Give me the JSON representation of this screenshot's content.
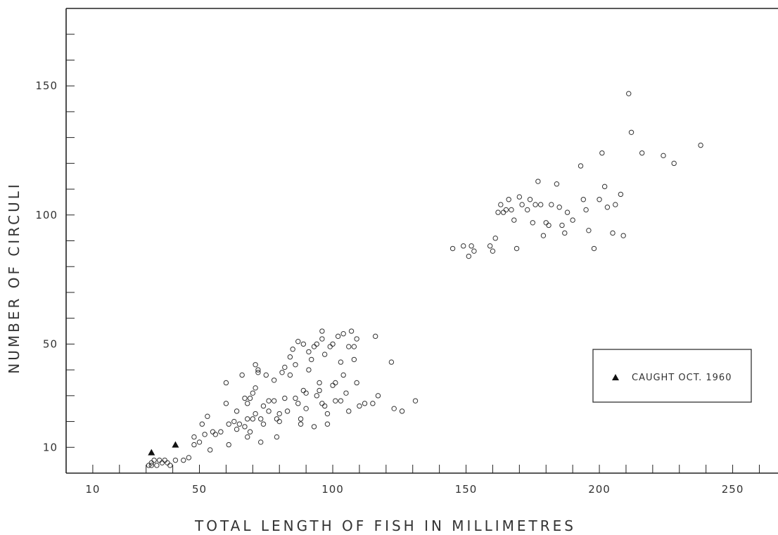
{
  "chart_data": {
    "type": "scatter",
    "title": "",
    "xlabel": "TOTAL LENGTH OF FISH IN MILLIMETRES",
    "ylabel": "NUMBER OF CIRCULI",
    "x_ticks": [
      10,
      50,
      100,
      150,
      200,
      250
    ],
    "y_ticks": [
      10,
      50,
      100,
      150
    ],
    "xlim": [
      0,
      267
    ],
    "ylim": [
      0,
      180
    ],
    "grid": false,
    "legend": {
      "placement": "right",
      "entries": [
        {
          "marker": "triangle",
          "label": "CAUGHT OCT. 1960"
        }
      ]
    },
    "series": [
      {
        "marker": "open-circle",
        "points": [
          [
            31,
            3
          ],
          [
            32,
            4
          ],
          [
            32,
            3
          ],
          [
            33,
            5
          ],
          [
            34,
            3
          ],
          [
            35,
            5
          ],
          [
            36,
            4
          ],
          [
            37,
            5
          ],
          [
            38,
            4
          ],
          [
            39,
            3
          ],
          [
            41,
            5
          ],
          [
            44,
            5
          ],
          [
            46,
            6
          ],
          [
            48,
            11
          ],
          [
            48,
            14
          ],
          [
            50,
            12
          ],
          [
            51,
            19
          ],
          [
            52,
            15
          ],
          [
            53,
            22
          ],
          [
            54,
            9
          ],
          [
            55,
            16
          ],
          [
            56,
            15
          ],
          [
            58,
            16
          ],
          [
            60,
            27
          ],
          [
            60,
            35
          ],
          [
            61,
            19
          ],
          [
            61,
            11
          ],
          [
            63,
            20
          ],
          [
            64,
            17
          ],
          [
            64,
            24
          ],
          [
            65,
            19
          ],
          [
            66,
            38
          ],
          [
            67,
            29
          ],
          [
            67,
            18
          ],
          [
            68,
            27
          ],
          [
            68,
            14
          ],
          [
            68,
            21
          ],
          [
            69,
            16
          ],
          [
            69,
            29
          ],
          [
            70,
            21
          ],
          [
            70,
            31
          ],
          [
            71,
            42
          ],
          [
            71,
            33
          ],
          [
            71,
            23
          ],
          [
            72,
            39
          ],
          [
            72,
            40
          ],
          [
            73,
            21
          ],
          [
            73,
            12
          ],
          [
            74,
            26
          ],
          [
            74,
            19
          ],
          [
            75,
            38
          ],
          [
            76,
            24
          ],
          [
            76,
            28
          ],
          [
            78,
            36
          ],
          [
            78,
            28
          ],
          [
            79,
            21
          ],
          [
            79,
            14
          ],
          [
            80,
            20
          ],
          [
            80,
            23
          ],
          [
            81,
            39
          ],
          [
            82,
            41
          ],
          [
            82,
            29
          ],
          [
            83,
            24
          ],
          [
            84,
            45
          ],
          [
            84,
            38
          ],
          [
            85,
            48
          ],
          [
            86,
            42
          ],
          [
            86,
            29
          ],
          [
            87,
            51
          ],
          [
            87,
            27
          ],
          [
            88,
            21
          ],
          [
            88,
            19
          ],
          [
            89,
            50
          ],
          [
            89,
            32
          ],
          [
            90,
            25
          ],
          [
            90,
            31
          ],
          [
            91,
            40
          ],
          [
            91,
            47
          ],
          [
            92,
            44
          ],
          [
            93,
            18
          ],
          [
            93,
            49
          ],
          [
            94,
            30
          ],
          [
            94,
            50
          ],
          [
            95,
            35
          ],
          [
            95,
            32
          ],
          [
            96,
            52
          ],
          [
            96,
            27
          ],
          [
            96,
            55
          ],
          [
            97,
            26
          ],
          [
            97,
            46
          ],
          [
            98,
            23
          ],
          [
            98,
            19
          ],
          [
            99,
            49
          ],
          [
            100,
            34
          ],
          [
            100,
            50
          ],
          [
            101,
            28
          ],
          [
            101,
            35
          ],
          [
            102,
            53
          ],
          [
            103,
            43
          ],
          [
            103,
            28
          ],
          [
            104,
            54
          ],
          [
            104,
            38
          ],
          [
            105,
            31
          ],
          [
            106,
            49
          ],
          [
            106,
            24
          ],
          [
            107,
            55
          ],
          [
            108,
            44
          ],
          [
            108,
            49
          ],
          [
            109,
            52
          ],
          [
            109,
            35
          ],
          [
            110,
            26
          ],
          [
            112,
            27
          ],
          [
            115,
            27
          ],
          [
            116,
            53
          ],
          [
            117,
            30
          ],
          [
            122,
            43
          ],
          [
            123,
            25
          ],
          [
            126,
            24
          ],
          [
            131,
            28
          ],
          [
            145,
            87
          ],
          [
            149,
            88
          ],
          [
            151,
            84
          ],
          [
            152,
            88
          ],
          [
            153,
            86
          ],
          [
            159,
            88
          ],
          [
            160,
            86
          ],
          [
            161,
            91
          ],
          [
            162,
            101
          ],
          [
            163,
            104
          ],
          [
            164,
            101
          ],
          [
            165,
            102
          ],
          [
            166,
            106
          ],
          [
            167,
            102
          ],
          [
            168,
            98
          ],
          [
            169,
            87
          ],
          [
            170,
            107
          ],
          [
            171,
            104
          ],
          [
            173,
            102
          ],
          [
            174,
            106
          ],
          [
            175,
            97
          ],
          [
            176,
            104
          ],
          [
            177,
            113
          ],
          [
            178,
            104
          ],
          [
            179,
            92
          ],
          [
            180,
            97
          ],
          [
            181,
            96
          ],
          [
            182,
            104
          ],
          [
            184,
            112
          ],
          [
            185,
            103
          ],
          [
            186,
            96
          ],
          [
            187,
            93
          ],
          [
            188,
            101
          ],
          [
            190,
            98
          ],
          [
            193,
            119
          ],
          [
            194,
            106
          ],
          [
            195,
            102
          ],
          [
            196,
            94
          ],
          [
            198,
            87
          ],
          [
            200,
            106
          ],
          [
            201,
            124
          ],
          [
            202,
            111
          ],
          [
            203,
            103
          ],
          [
            205,
            93
          ],
          [
            206,
            104
          ],
          [
            208,
            108
          ],
          [
            209,
            92
          ],
          [
            211,
            147
          ],
          [
            212,
            132
          ],
          [
            216,
            124
          ],
          [
            224,
            123
          ],
          [
            228,
            120
          ],
          [
            238,
            127
          ]
        ]
      },
      {
        "name": "CAUGHT OCT. 1960",
        "marker": "triangle",
        "points": [
          [
            32,
            8
          ],
          [
            41,
            11
          ]
        ]
      }
    ]
  }
}
